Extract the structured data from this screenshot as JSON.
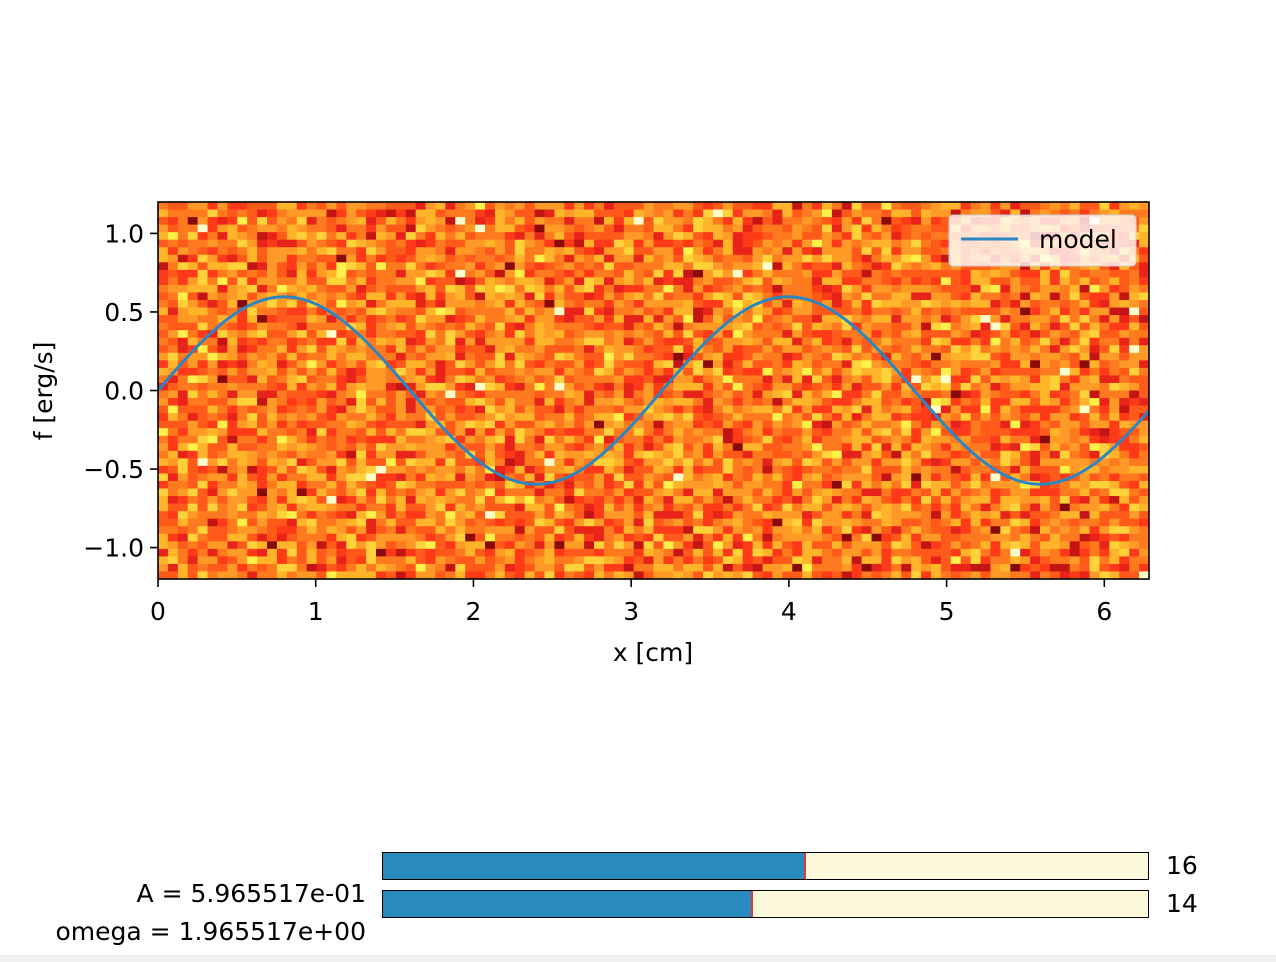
{
  "chart_data": {
    "type": "heatmap",
    "title": "",
    "xlabel": "x [cm]",
    "ylabel": "f [erg/s]",
    "xlim": [
      0,
      6.2832
    ],
    "ylim": [
      -1.2,
      1.2
    ],
    "xticks": [
      0,
      1,
      2,
      3,
      4,
      5,
      6
    ],
    "xtick_labels": [
      "0",
      "1",
      "2",
      "3",
      "4",
      "5",
      "6"
    ],
    "yticks": [
      1.0,
      0.5,
      0.0,
      -0.5,
      -1.0
    ],
    "ytick_labels": [
      "1.0",
      "0.5",
      "0.0",
      "−0.5",
      "−1.0"
    ],
    "heatmap": {
      "colormap": "YlOrRd",
      "description_grid": "random noise image",
      "colors": [
        "#ffffcc",
        "#fff04a",
        "#ffd23a",
        "#ffb42a",
        "#ff9a26",
        "#ff7a1e",
        "#ff5a1a",
        "#ff3a18",
        "#e8241a",
        "#c41414",
        "#8a0a0a"
      ]
    },
    "series": [
      {
        "name": "model",
        "type": "line",
        "color": "#2e86c1",
        "function": "A*sin(omega*x)",
        "A": 0.5965517,
        "omega": 1.965517
      }
    ],
    "legend": {
      "position": "top-right",
      "entries": [
        "model"
      ]
    }
  },
  "sliders": [
    {
      "label": "A = ",
      "value_text": "5.965517e-01",
      "fraction": 0.552,
      "count": "16"
    },
    {
      "label": "omega = ",
      "value_text": "1.965517e+00",
      "fraction": 0.483,
      "count": "14"
    }
  ],
  "colors": {
    "slider_fill": "#2a8bc0",
    "slider_track": "#fbf8dc",
    "slider_handle": "#e03a2b",
    "line": "#2e86c1"
  }
}
